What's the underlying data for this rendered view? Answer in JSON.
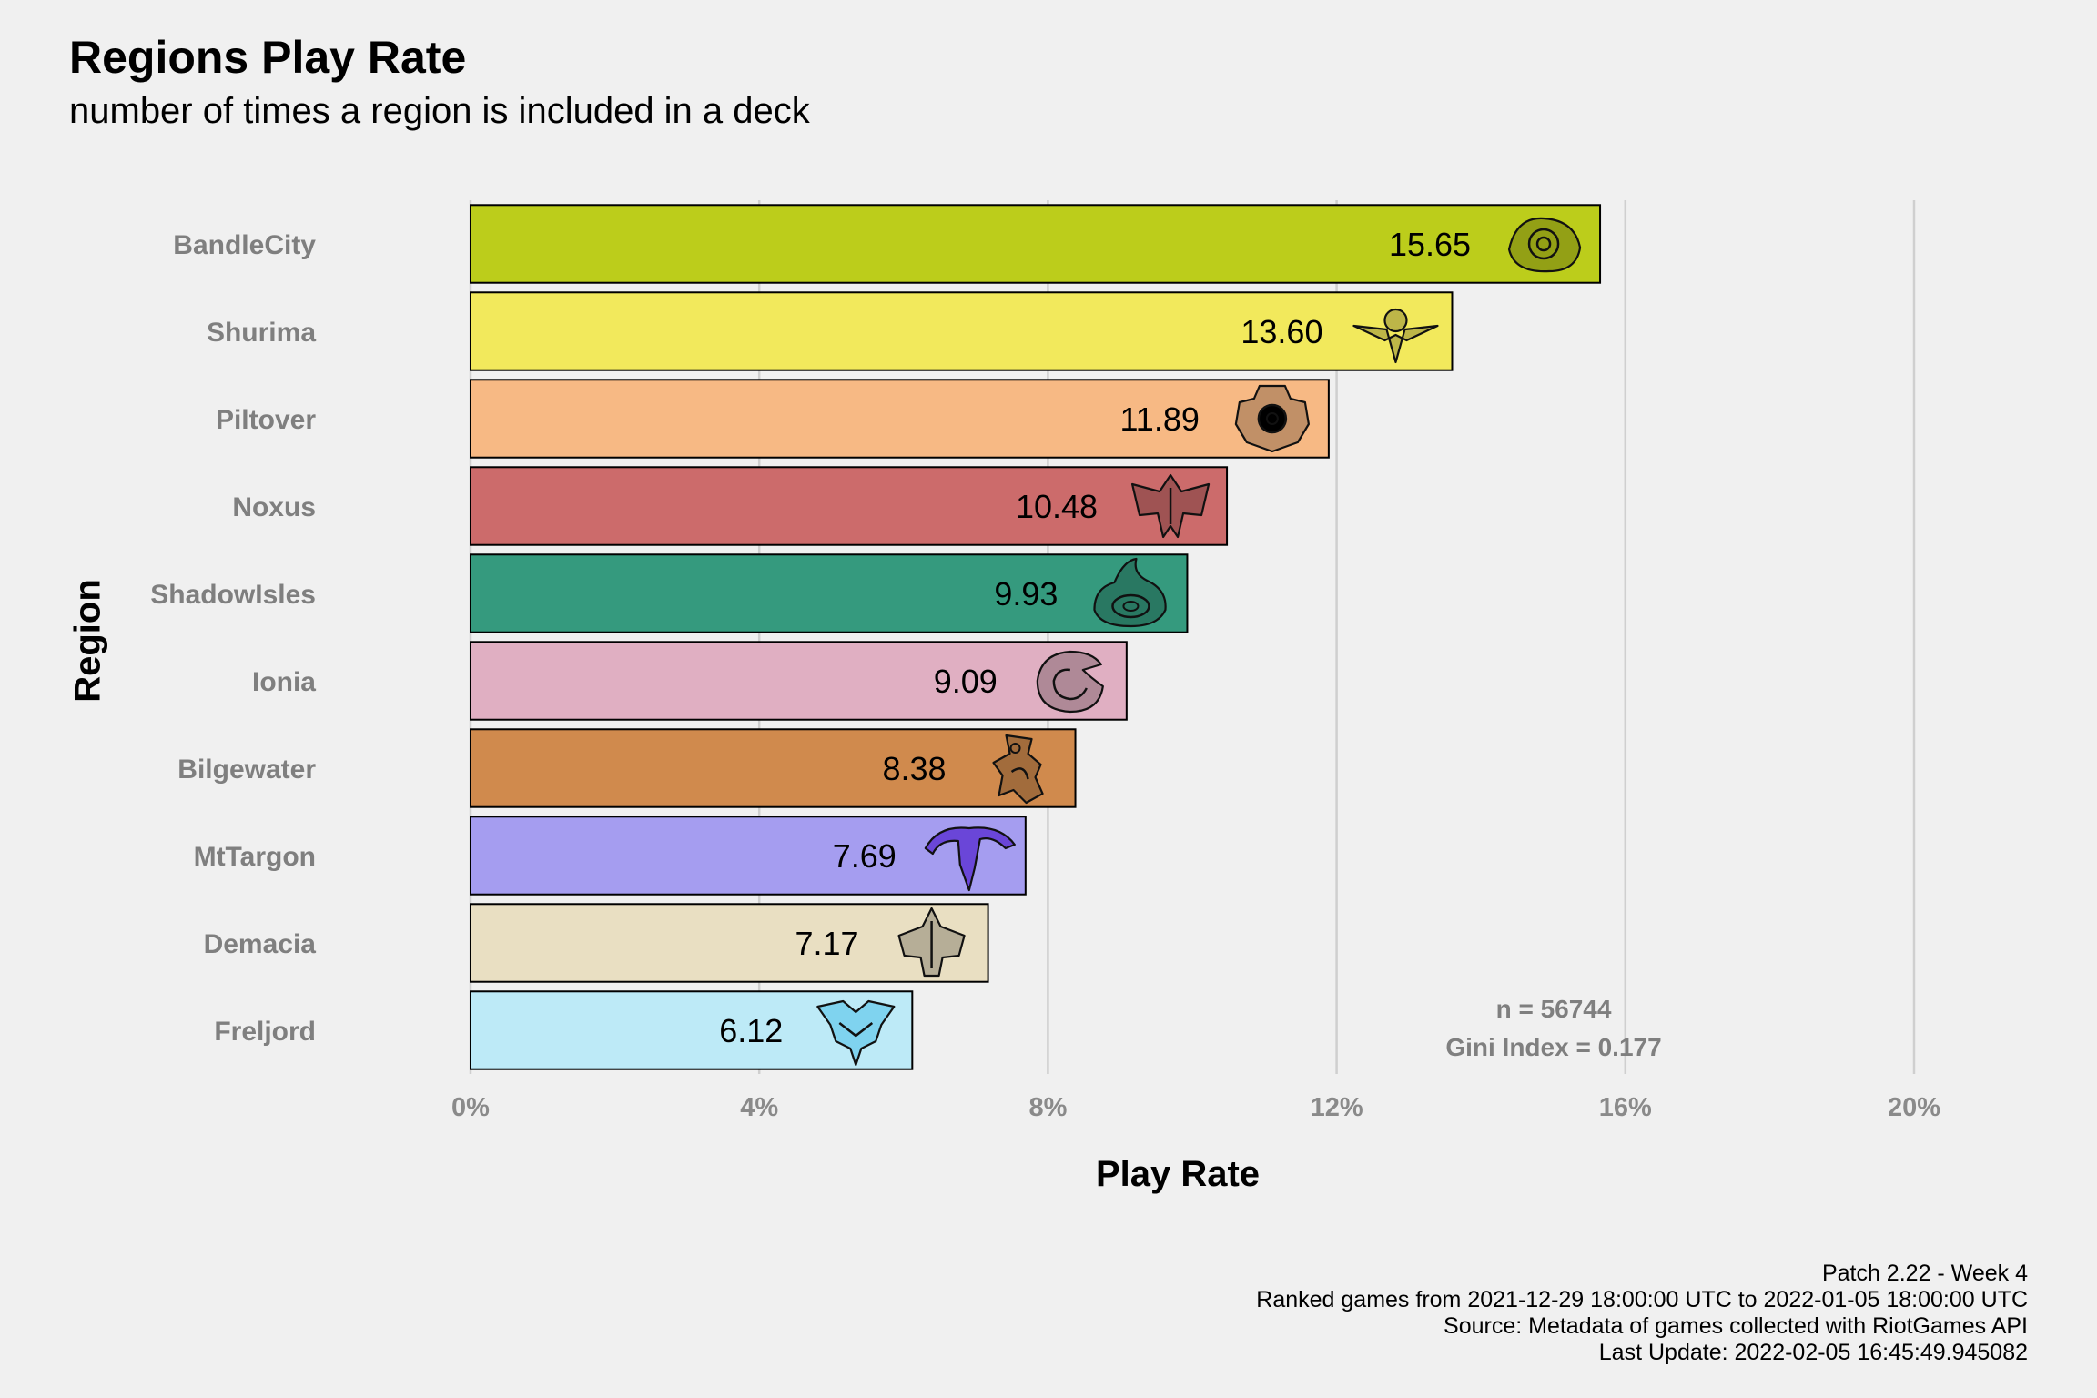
{
  "chart_data": {
    "type": "bar",
    "orientation": "horizontal",
    "title": "Regions Play Rate",
    "subtitle": "number of times a region is included in a deck",
    "xlabel": "Play Rate",
    "ylabel": "Region",
    "xlim": [
      0,
      20
    ],
    "x_ticks": [
      0,
      4,
      8,
      12,
      16,
      20
    ],
    "x_tick_labels": [
      "0%",
      "4%",
      "8%",
      "12%",
      "16%",
      "20%"
    ],
    "grid": "vertical major",
    "categories": [
      "BandleCity",
      "Shurima",
      "Piltover",
      "Noxus",
      "ShadowIsles",
      "Ionia",
      "Bilgewater",
      "MtTargon",
      "Demacia",
      "Freljord"
    ],
    "values": [
      15.65,
      13.6,
      11.89,
      10.48,
      9.93,
      9.09,
      8.38,
      7.69,
      7.17,
      6.12
    ],
    "value_labels": [
      "15.65",
      "13.60",
      "11.89",
      "10.48",
      "9.93",
      "9.09",
      "8.38",
      "7.69",
      "7.17",
      "6.12"
    ],
    "colors": [
      "#bccd1b",
      "#f2e95c",
      "#f7b984",
      "#cc6b6b",
      "#359a7e",
      "#e0afc2",
      "#d08a4d",
      "#a59df0",
      "#e9dfc2",
      "#bdeaf7"
    ],
    "icons": [
      "bandlecity-icon",
      "shurima-icon",
      "piltover-icon",
      "noxus-icon",
      "shadowisles-icon",
      "ionia-icon",
      "bilgewater-icon",
      "mttargon-icon",
      "demacia-icon",
      "freljord-icon"
    ],
    "annotations": [
      "n = 56744",
      "Gini Index = 0.177"
    ]
  },
  "caption": [
    "Patch 2.22 - Week 4",
    "Ranked games from 2021-12-29 18:00:00 UTC to 2022-01-05 18:00:00 UTC",
    "Source: Metadata of games collected with RiotGames API",
    "Last Update: 2022-02-05 16:45:49.945082"
  ]
}
